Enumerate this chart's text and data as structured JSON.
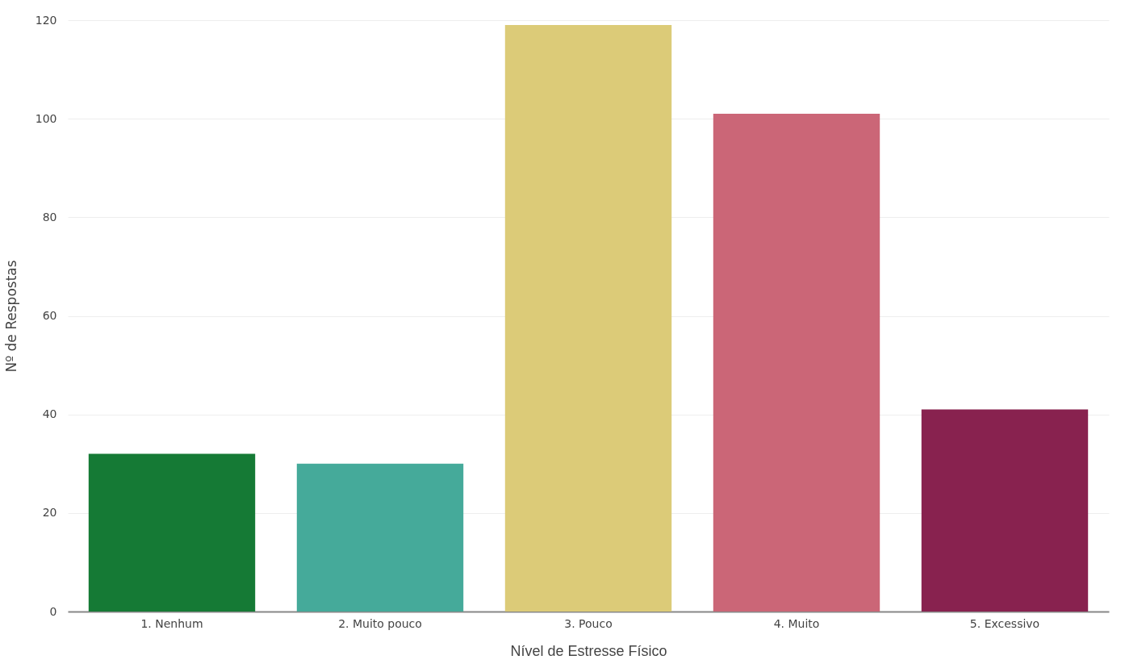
{
  "chart_data": {
    "type": "bar",
    "xlabel": "Nível de Estresse Físico",
    "ylabel": "Nº de Respostas",
    "categories": [
      "1. Nenhum",
      "2. Muito pouco",
      "3. Pouco",
      "4. Muito",
      "5. Excessivo"
    ],
    "values": [
      32,
      30,
      119,
      101,
      41
    ],
    "colors": [
      "#157a35",
      "#45aa9a",
      "#dccb78",
      "#cb6677",
      "#88224f"
    ],
    "ylim": [
      0,
      120
    ],
    "yticks": [
      0,
      20,
      40,
      60,
      80,
      100,
      120
    ],
    "grid": "y"
  }
}
